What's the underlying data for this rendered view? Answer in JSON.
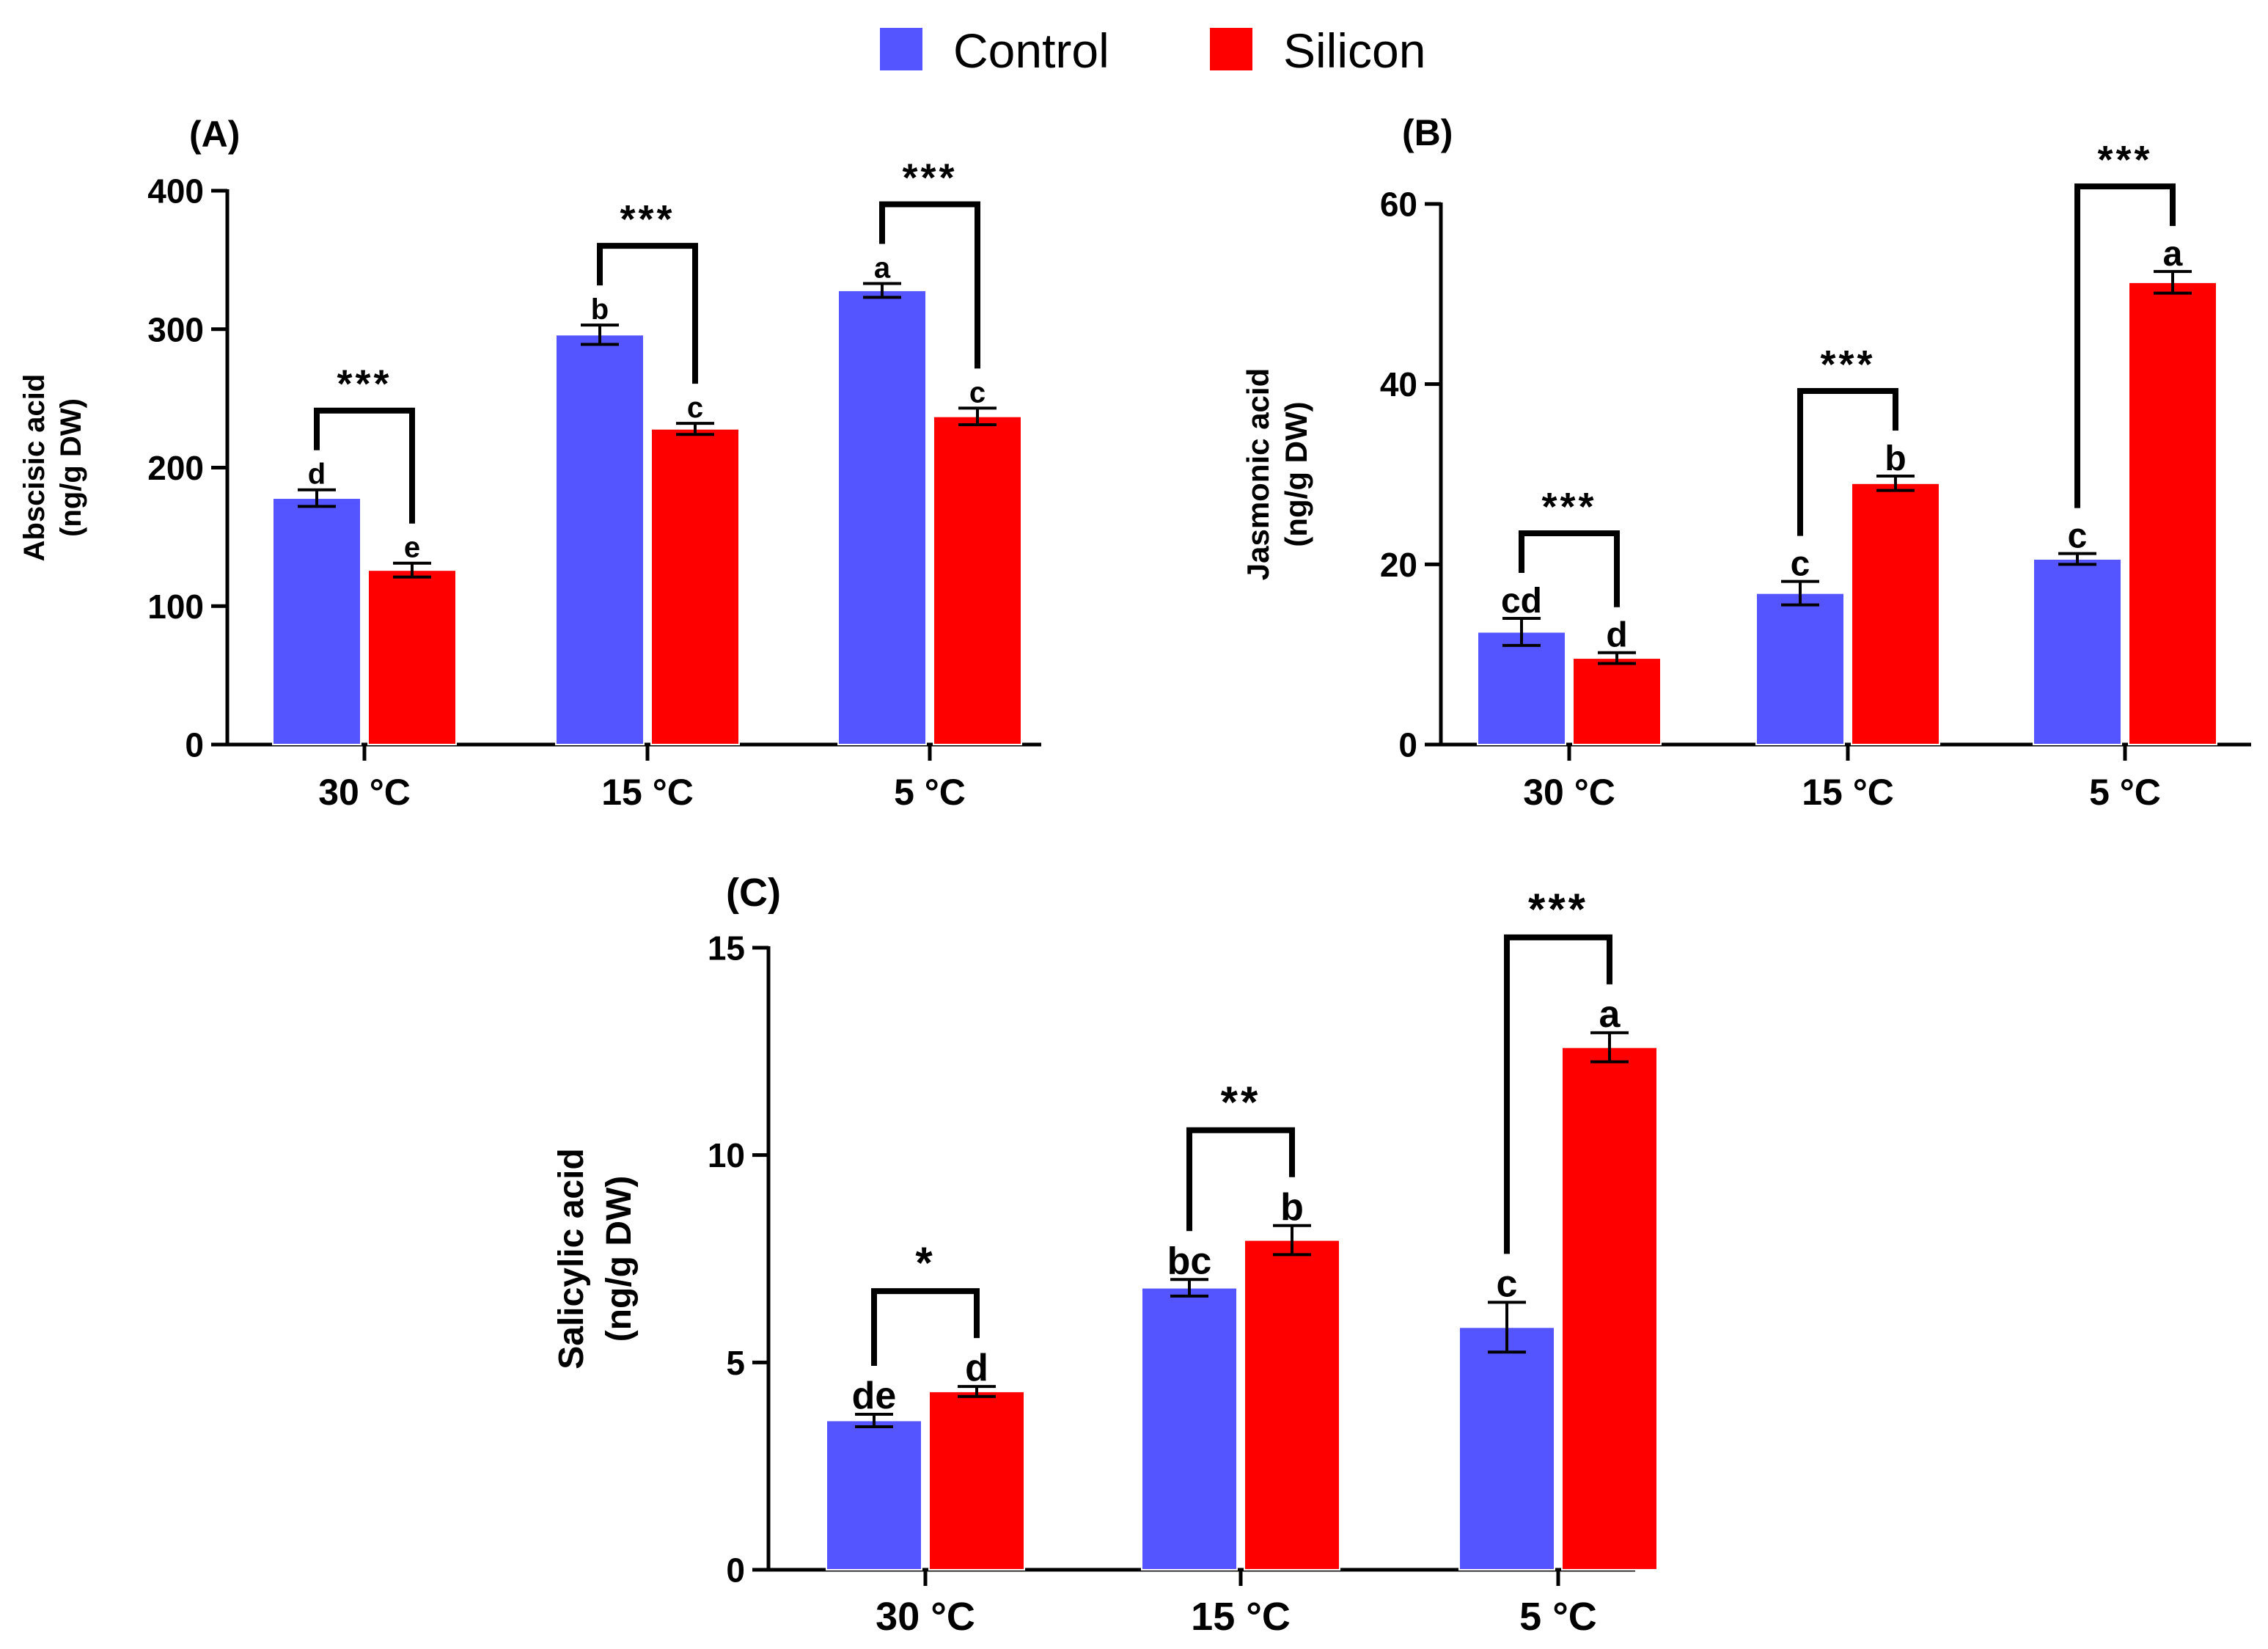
{
  "legend": {
    "items": [
      {
        "label": "Control",
        "color": "#5555ff"
      },
      {
        "label": "Silicon",
        "color": "#ff0000"
      }
    ]
  },
  "chart_data": [
    {
      "type": "bar",
      "panel": "(A)",
      "ylabel_line1": "Abscisic acid",
      "ylabel_line2": "(ng/g DW)",
      "ylim": [
        0,
        400
      ],
      "yticks": [
        0,
        100,
        200,
        300,
        400
      ],
      "categories": [
        "30 °C",
        "15 °C",
        "5 °C"
      ],
      "series": [
        {
          "name": "Control",
          "values": [
            178,
            296,
            328
          ],
          "errors": [
            6,
            7,
            5
          ],
          "letters": [
            "d",
            "b",
            "a"
          ]
        },
        {
          "name": "Silicon",
          "values": [
            126,
            228,
            237
          ],
          "errors": [
            5,
            4,
            6
          ],
          "letters": [
            "e",
            "c",
            "c"
          ]
        }
      ],
      "significance": [
        "***",
        "***",
        "***"
      ]
    },
    {
      "type": "bar",
      "panel": "(B)",
      "ylabel_line1": "Jasmonic acid",
      "ylabel_line2": "(ng/g DW)",
      "ylim": [
        0,
        60
      ],
      "yticks": [
        0,
        20,
        40,
        60
      ],
      "categories": [
        "30 °C",
        "15 °C",
        "5 °C"
      ],
      "series": [
        {
          "name": "Control",
          "values": [
            12.5,
            16.8,
            20.6
          ],
          "errors": [
            1.5,
            1.3,
            0.6
          ],
          "letters": [
            "cd",
            "c",
            "c"
          ]
        },
        {
          "name": "Silicon",
          "values": [
            9.6,
            29.0,
            51.3
          ],
          "errors": [
            0.6,
            0.8,
            1.2
          ],
          "letters": [
            "d",
            "b",
            "a"
          ]
        }
      ],
      "significance": [
        "***",
        "***",
        "***"
      ]
    },
    {
      "type": "bar",
      "panel": "(C)",
      "ylabel_line1": "Salicylic acid",
      "ylabel_line2": "(ng/g  DW)",
      "ylim": [
        0,
        15
      ],
      "yticks": [
        0,
        5,
        10,
        15
      ],
      "categories": [
        "30 °C",
        "15 °C",
        "5 °C"
      ],
      "series": [
        {
          "name": "Control",
          "values": [
            3.6,
            6.8,
            5.85
          ],
          "errors": [
            0.15,
            0.2,
            0.6
          ],
          "letters": [
            "de",
            "bc",
            "c"
          ]
        },
        {
          "name": "Silicon",
          "values": [
            4.3,
            7.95,
            12.6
          ],
          "errors": [
            0.12,
            0.35,
            0.35
          ],
          "letters": [
            "d",
            "b",
            "a"
          ]
        }
      ],
      "significance": [
        "*",
        "**",
        "***"
      ]
    }
  ]
}
